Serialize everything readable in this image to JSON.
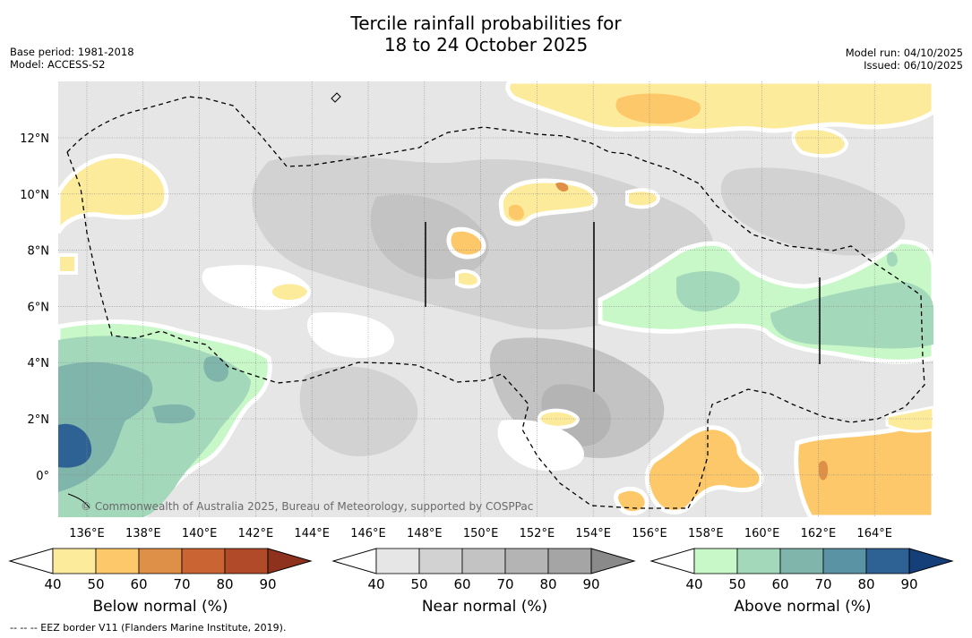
{
  "title": {
    "line1": "Tercile rainfall probabilities for",
    "line2": "18 to 24 October 2025"
  },
  "meta_left": {
    "base_period": "Base period: 1981-2018",
    "model": "Model: ACCESS-S2"
  },
  "meta_right": {
    "model_run": "Model run: 04/10/2025",
    "issued": "Issued: 06/10/2025"
  },
  "map": {
    "lon_labels": [
      "136°E",
      "138°E",
      "140°E",
      "142°E",
      "144°E",
      "146°E",
      "148°E",
      "150°E",
      "152°E",
      "154°E",
      "156°E",
      "158°E",
      "160°E",
      "162°E",
      "164°E"
    ],
    "lat_labels": [
      "12°N",
      "10°N",
      "8°N",
      "6°N",
      "4°N",
      "2°N",
      "0°"
    ],
    "copyright": "© Commonwealth of Australia 2025, Bureau of Meteorology, supported by COSPPac"
  },
  "colorbars": [
    {
      "label": "Below normal (%)",
      "ticks": [
        "40",
        "50",
        "60",
        "70",
        "80",
        "90"
      ],
      "colors": [
        "#ffffff",
        "#fdeb9c",
        "#fdc86a",
        "#df9048",
        "#cb6433",
        "#b04a28",
        "#8e321e"
      ]
    },
    {
      "label": "Near normal (%)",
      "ticks": [
        "40",
        "50",
        "60",
        "70",
        "80",
        "90"
      ],
      "colors": [
        "#ffffff",
        "#e6e6e6",
        "#d2d2d2",
        "#c3c3c3",
        "#b4b4b4",
        "#a5a5a5",
        "#8a8a8a"
      ]
    },
    {
      "label": "Above normal (%)",
      "ticks": [
        "40",
        "50",
        "60",
        "70",
        "80",
        "90"
      ],
      "colors": [
        "#ffffff",
        "#c8f8c8",
        "#a4d8bb",
        "#80b5ac",
        "#5a93a4",
        "#2f6294",
        "#143f78"
      ]
    }
  ],
  "footer": "-- -- -- EEZ border V11 (Flanders Marine Institute, 2019)."
}
